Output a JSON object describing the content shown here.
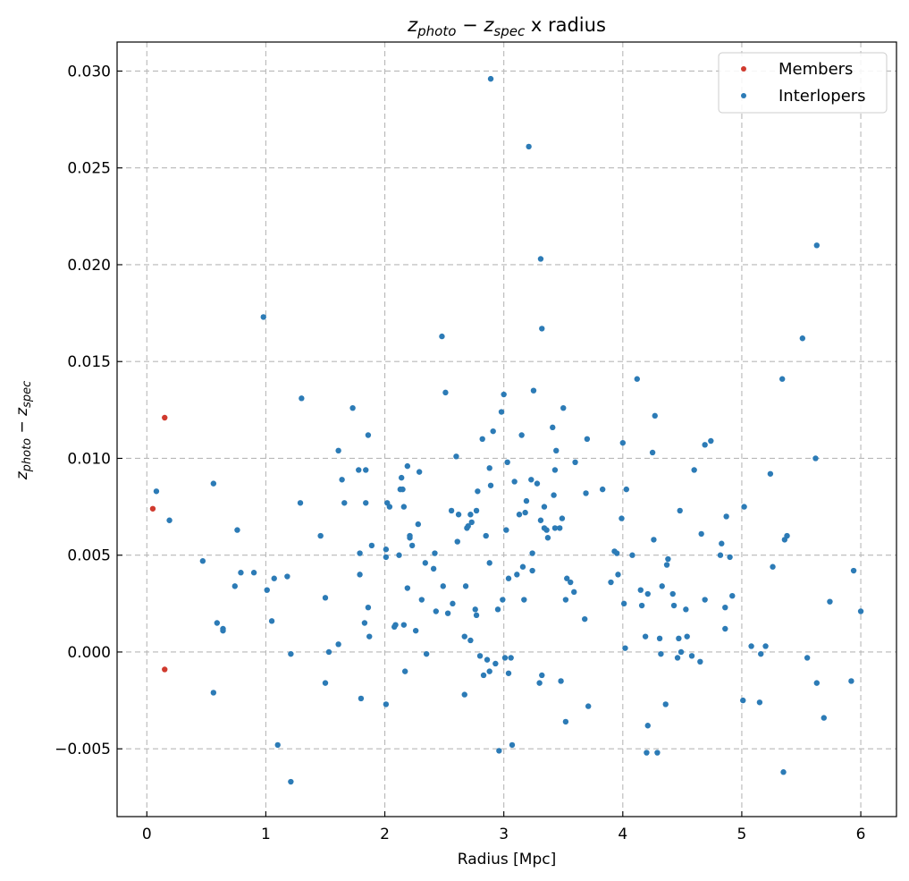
{
  "chart_data": {
    "type": "scatter",
    "title": {
      "z1": "z",
      "sub1": "photo",
      "minus": " − ",
      "z2": "z",
      "sub2": "spec",
      "suffix": " x radius"
    },
    "xlabel": "Radius [Mpc]",
    "ylabel": {
      "z1": "z",
      "sub1": "photo",
      "minus": " − ",
      "z2": "z",
      "sub2": "spec"
    },
    "xlim": [
      -0.25,
      6.3
    ],
    "ylim": [
      -0.0085,
      0.0315
    ],
    "xticks": [
      0,
      1,
      2,
      3,
      4,
      5,
      6
    ],
    "xtick_labels": [
      "0",
      "1",
      "2",
      "3",
      "4",
      "5",
      "6"
    ],
    "yticks": [
      -0.005,
      0,
      0.005,
      0.01,
      0.015,
      0.02,
      0.025,
      0.03
    ],
    "ytick_labels": [
      "−0.005",
      "0.000",
      "0.005",
      "0.010",
      "0.015",
      "0.020",
      "0.025",
      "0.030"
    ],
    "grid": true,
    "legend_position": "top-right",
    "series": [
      {
        "name": "Members",
        "color": "#d03a2e",
        "points": [
          [
            0.05,
            0.0074
          ],
          [
            0.15,
            0.0121
          ],
          [
            0.15,
            -0.0009
          ]
        ]
      },
      {
        "name": "Interlopers",
        "color": "#2c7bb6",
        "points": [
          [
            0.08,
            0.0083
          ],
          [
            0.19,
            0.0068
          ],
          [
            0.47,
            0.0047
          ],
          [
            0.56,
            0.0087
          ],
          [
            0.56,
            -0.0021
          ],
          [
            0.59,
            0.0015
          ],
          [
            0.64,
            0.0012
          ],
          [
            0.64,
            0.0011
          ],
          [
            0.74,
            0.0034
          ],
          [
            0.76,
            0.0063
          ],
          [
            0.79,
            0.0041
          ],
          [
            0.9,
            0.0041
          ],
          [
            0.98,
            0.0173
          ],
          [
            1.01,
            0.0032
          ],
          [
            1.05,
            0.0016
          ],
          [
            1.07,
            0.0038
          ],
          [
            1.1,
            -0.0048
          ],
          [
            1.18,
            0.0039
          ],
          [
            1.21,
            -0.0067
          ],
          [
            1.21,
            -0.0001
          ],
          [
            1.29,
            0.0077
          ],
          [
            1.3,
            0.0131
          ],
          [
            1.46,
            0.006
          ],
          [
            1.5,
            0.0028
          ],
          [
            1.5,
            -0.0016
          ],
          [
            1.53,
            0.0
          ],
          [
            1.61,
            0.0104
          ],
          [
            1.61,
            0.0004
          ],
          [
            1.64,
            0.0089
          ],
          [
            1.66,
            0.0077
          ],
          [
            1.73,
            0.0126
          ],
          [
            1.78,
            0.0094
          ],
          [
            1.79,
            0.0051
          ],
          [
            1.79,
            0.004
          ],
          [
            1.8,
            -0.0024
          ],
          [
            1.83,
            0.0015
          ],
          [
            1.84,
            0.0094
          ],
          [
            1.84,
            0.0077
          ],
          [
            1.86,
            0.0112
          ],
          [
            1.86,
            0.0023
          ],
          [
            1.87,
            0.0008
          ],
          [
            1.89,
            0.0055
          ],
          [
            2.01,
            0.0053
          ],
          [
            2.01,
            0.0049
          ],
          [
            2.01,
            -0.0027
          ],
          [
            2.02,
            0.0077
          ],
          [
            2.04,
            0.0075
          ],
          [
            2.08,
            0.0013
          ],
          [
            2.09,
            0.0014
          ],
          [
            2.12,
            0.005
          ],
          [
            2.13,
            0.0084
          ],
          [
            2.14,
            0.009
          ],
          [
            2.15,
            0.0084
          ],
          [
            2.16,
            0.0075
          ],
          [
            2.16,
            0.0014
          ],
          [
            2.17,
            -0.001
          ],
          [
            2.19,
            0.0096
          ],
          [
            2.19,
            0.0033
          ],
          [
            2.21,
            0.006
          ],
          [
            2.21,
            0.0059
          ],
          [
            2.23,
            0.0055
          ],
          [
            2.26,
            0.0011
          ],
          [
            2.28,
            0.0066
          ],
          [
            2.29,
            0.0093
          ],
          [
            2.31,
            0.0027
          ],
          [
            2.34,
            0.0046
          ],
          [
            2.35,
            -0.0001
          ],
          [
            2.41,
            0.0043
          ],
          [
            2.42,
            0.0051
          ],
          [
            2.43,
            0.0021
          ],
          [
            2.48,
            0.0163
          ],
          [
            2.49,
            0.0034
          ],
          [
            2.51,
            0.0134
          ],
          [
            2.53,
            0.002
          ],
          [
            2.56,
            0.0073
          ],
          [
            2.57,
            0.0025
          ],
          [
            2.6,
            0.0101
          ],
          [
            2.61,
            0.0057
          ],
          [
            2.62,
            0.0071
          ],
          [
            2.67,
            0.0008
          ],
          [
            2.67,
            -0.0022
          ],
          [
            2.68,
            0.0034
          ],
          [
            2.69,
            0.0064
          ],
          [
            2.7,
            0.0065
          ],
          [
            2.72,
            0.0071
          ],
          [
            2.72,
            0.0006
          ],
          [
            2.73,
            0.0067
          ],
          [
            2.76,
            0.0022
          ],
          [
            2.77,
            0.0073
          ],
          [
            2.77,
            0.0019
          ],
          [
            2.78,
            0.0083
          ],
          [
            2.8,
            -0.0002
          ],
          [
            2.82,
            0.011
          ],
          [
            2.83,
            -0.0012
          ],
          [
            2.85,
            0.006
          ],
          [
            2.86,
            -0.0004
          ],
          [
            2.88,
            -0.001
          ],
          [
            2.88,
            0.0095
          ],
          [
            2.88,
            0.0046
          ],
          [
            2.89,
            0.0086
          ],
          [
            2.89,
            0.0296
          ],
          [
            2.91,
            0.0114
          ],
          [
            2.93,
            -0.0006
          ],
          [
            2.95,
            0.0022
          ],
          [
            2.96,
            -0.0051
          ],
          [
            2.98,
            0.0124
          ],
          [
            2.99,
            0.0027
          ],
          [
            3.0,
            0.0133
          ],
          [
            3.01,
            -0.0003
          ],
          [
            3.02,
            0.0063
          ],
          [
            3.03,
            0.0098
          ],
          [
            3.04,
            -0.0011
          ],
          [
            3.04,
            0.0038
          ],
          [
            3.06,
            -0.0003
          ],
          [
            3.07,
            -0.0048
          ],
          [
            3.09,
            0.0088
          ],
          [
            3.11,
            0.004
          ],
          [
            3.13,
            0.0071
          ],
          [
            3.15,
            0.0112
          ],
          [
            3.16,
            0.0044
          ],
          [
            3.17,
            0.0027
          ],
          [
            3.18,
            0.0072
          ],
          [
            3.19,
            0.0078
          ],
          [
            3.21,
            0.0261
          ],
          [
            3.23,
            0.0089
          ],
          [
            3.24,
            0.0042
          ],
          [
            3.24,
            0.0051
          ],
          [
            3.25,
            0.0135
          ],
          [
            3.28,
            0.0087
          ],
          [
            3.3,
            -0.0016
          ],
          [
            3.31,
            0.0068
          ],
          [
            3.31,
            0.0203
          ],
          [
            3.32,
            0.0167
          ],
          [
            3.32,
            -0.0012
          ],
          [
            3.34,
            0.0075
          ],
          [
            3.34,
            0.0064
          ],
          [
            3.36,
            0.0063
          ],
          [
            3.37,
            0.0059
          ],
          [
            3.41,
            0.0116
          ],
          [
            3.42,
            0.0081
          ],
          [
            3.43,
            0.0064
          ],
          [
            3.43,
            0.0094
          ],
          [
            3.44,
            0.0104
          ],
          [
            3.47,
            0.0064
          ],
          [
            3.48,
            -0.0015
          ],
          [
            3.49,
            0.0069
          ],
          [
            3.5,
            0.0126
          ],
          [
            3.52,
            0.0027
          ],
          [
            3.52,
            -0.0036
          ],
          [
            3.53,
            0.0038
          ],
          [
            3.56,
            0.0036
          ],
          [
            3.59,
            0.0031
          ],
          [
            3.6,
            0.0098
          ],
          [
            3.68,
            0.0017
          ],
          [
            3.69,
            0.0082
          ],
          [
            3.7,
            0.011
          ],
          [
            3.71,
            -0.0028
          ],
          [
            3.83,
            0.0084
          ],
          [
            3.9,
            0.0036
          ],
          [
            3.93,
            0.0052
          ],
          [
            3.95,
            0.0051
          ],
          [
            3.96,
            0.004
          ],
          [
            3.99,
            0.0069
          ],
          [
            4.0,
            0.0108
          ],
          [
            4.01,
            0.0025
          ],
          [
            4.02,
            0.0002
          ],
          [
            4.03,
            0.0084
          ],
          [
            4.08,
            0.005
          ],
          [
            4.12,
            0.0141
          ],
          [
            4.15,
            0.0032
          ],
          [
            4.16,
            0.0024
          ],
          [
            4.19,
            0.0008
          ],
          [
            4.2,
            -0.0052
          ],
          [
            4.21,
            0.003
          ],
          [
            4.21,
            -0.0038
          ],
          [
            4.25,
            0.0103
          ],
          [
            4.26,
            0.0058
          ],
          [
            4.27,
            0.0122
          ],
          [
            4.29,
            -0.0052
          ],
          [
            4.31,
            0.0007
          ],
          [
            4.32,
            -0.0001
          ],
          [
            4.33,
            0.0034
          ],
          [
            4.36,
            -0.0027
          ],
          [
            4.37,
            0.0045
          ],
          [
            4.38,
            0.0048
          ],
          [
            4.42,
            0.003
          ],
          [
            4.43,
            0.0024
          ],
          [
            4.46,
            -0.0003
          ],
          [
            4.47,
            0.0007
          ],
          [
            4.48,
            0.0073
          ],
          [
            4.49,
            0.0
          ],
          [
            4.53,
            0.0022
          ],
          [
            4.54,
            0.0008
          ],
          [
            4.58,
            -0.0002
          ],
          [
            4.6,
            0.0094
          ],
          [
            4.65,
            -0.0005
          ],
          [
            4.66,
            0.0061
          ],
          [
            4.69,
            0.0107
          ],
          [
            4.69,
            0.0027
          ],
          [
            4.74,
            0.0109
          ],
          [
            4.82,
            0.005
          ],
          [
            4.83,
            0.0056
          ],
          [
            4.86,
            0.0023
          ],
          [
            4.86,
            0.0012
          ],
          [
            4.87,
            0.007
          ],
          [
            4.9,
            0.0049
          ],
          [
            4.92,
            0.0029
          ],
          [
            5.01,
            -0.0025
          ],
          [
            5.02,
            0.0075
          ],
          [
            5.08,
            0.0003
          ],
          [
            5.15,
            -0.0026
          ],
          [
            5.16,
            -0.0001
          ],
          [
            5.2,
            0.0003
          ],
          [
            5.24,
            0.0092
          ],
          [
            5.26,
            0.0044
          ],
          [
            5.34,
            0.0141
          ],
          [
            5.35,
            -0.0062
          ],
          [
            5.36,
            0.0058
          ],
          [
            5.38,
            0.006
          ],
          [
            5.51,
            0.0162
          ],
          [
            5.55,
            -0.0003
          ],
          [
            5.62,
            0.01
          ],
          [
            5.63,
            0.021
          ],
          [
            5.63,
            -0.0016
          ],
          [
            5.69,
            -0.0034
          ],
          [
            5.74,
            0.0026
          ],
          [
            5.92,
            -0.0015
          ],
          [
            5.94,
            0.0042
          ],
          [
            6.0,
            0.0021
          ]
        ]
      }
    ]
  }
}
